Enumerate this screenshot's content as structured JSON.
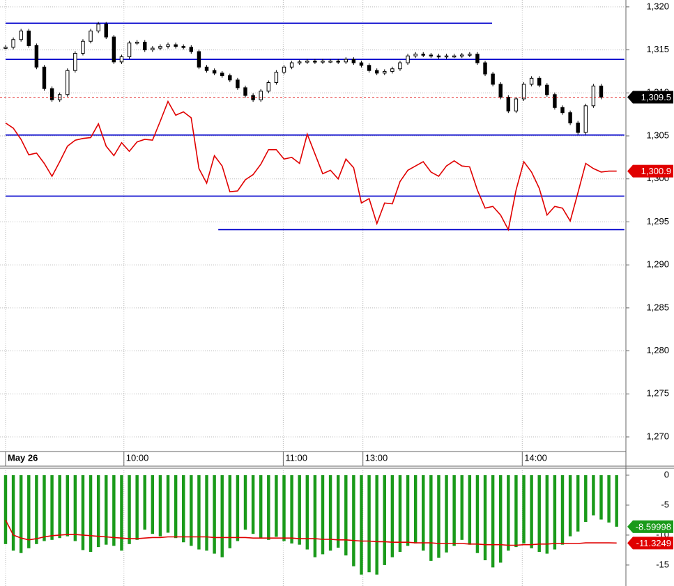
{
  "chart_data": [
    {
      "type": "candlestick",
      "xlim": [
        -0.72,
        80.2
      ],
      "xticks": [
        {
          "value": 0,
          "label": "May 26"
        },
        {
          "value": 15.3,
          "label": "10:00"
        },
        {
          "value": 35.9,
          "label": "11:00"
        },
        {
          "value": 46.2,
          "label": "13:00"
        },
        {
          "value": 66.8,
          "label": "14:00"
        }
      ],
      "ylim": [
        1268.3,
        1320.8
      ],
      "yticks": [
        {
          "value": 1270,
          "label": "1,270"
        },
        {
          "value": 1275,
          "label": "1,275"
        },
        {
          "value": 1280,
          "label": "1,280"
        },
        {
          "value": 1285,
          "label": "1,285"
        },
        {
          "value": 1290,
          "label": "1,290"
        },
        {
          "value": 1295,
          "label": "1,295"
        },
        {
          "value": 1300,
          "label": "1,300"
        },
        {
          "value": 1305,
          "label": "1,305"
        },
        {
          "value": 1310,
          "label": "1,310"
        },
        {
          "value": 1315,
          "label": "1,315"
        },
        {
          "value": 1320,
          "label": "1,320"
        }
      ],
      "grid": true,
      "levels": [
        {
          "value": 1318.1,
          "from": 0,
          "to": 62.9
        },
        {
          "value": 1313.9,
          "from": 0,
          "to": 80
        },
        {
          "value": 1305.1,
          "from": 0,
          "to": 80
        },
        {
          "value": 1298.0,
          "from": 0,
          "to": 80
        },
        {
          "value": 1294.1,
          "from": 27.5,
          "to": 80
        }
      ],
      "level_color": "#0000cc",
      "series": [
        {
          "type": "candlestick",
          "color": "#000000",
          "last_label": "1,309.5",
          "values": [
            1315.3,
            1316.2,
            1317.2,
            1315.5,
            1313,
            1310.5,
            1309.2,
            1309.8,
            1312.6,
            1314.6,
            1316,
            1317.2,
            1318,
            1316.5,
            1313.6,
            1314.2,
            1315.8,
            1315.9,
            1315,
            1315.2,
            1315.4,
            1315.6,
            1315.4,
            1315.3,
            1314.8,
            1313,
            1312.6,
            1312.3,
            1312,
            1311.5,
            1310.6,
            1309.7,
            1309.2,
            1310.2,
            1311.2,
            1312.4,
            1313,
            1313.5,
            1313.6,
            1313.7,
            1313.6,
            1313.7,
            1313.7,
            1313.6,
            1313.9,
            1313.5,
            1313.2,
            1312.6,
            1312.3,
            1312.5,
            1312.8,
            1313.5,
            1314.3,
            1314.5,
            1314.4,
            1314.3,
            1314.2,
            1314.3,
            1314.3,
            1314.4,
            1314.5,
            1313.5,
            1312.2,
            1311,
            1309.5,
            1307.9,
            1309.3,
            1311,
            1311.7,
            1310.9,
            1309.8,
            1308.3,
            1307.7,
            1306.5,
            1305.4,
            1308.5,
            1310.8,
            1309.5,
            null,
            null
          ]
        },
        {
          "type": "line",
          "color": "#e00000",
          "last_label": "1,300.9",
          "values": [
            1306.5,
            1305.9,
            1304.6,
            1302.8,
            1303,
            1301.8,
            1300.3,
            1302,
            1303.8,
            1304.5,
            1304.7,
            1304.8,
            1306.4,
            1303.8,
            1302.7,
            1304.2,
            1303.2,
            1304.3,
            1304.6,
            1304.5,
            1306.7,
            1309,
            1307.4,
            1307.8,
            1307.1,
            1301.2,
            1299.5,
            1302.7,
            1301.5,
            1298.5,
            1298.6,
            1299.9,
            1300.5,
            1301.7,
            1303.4,
            1303.4,
            1302.3,
            1302.5,
            1301.8,
            1305.2,
            1302.9,
            1300.6,
            1301,
            1300,
            1302.3,
            1301.3,
            1297.2,
            1297.7,
            1294.8,
            1297.2,
            1297.1,
            1299.7,
            1301,
            1301.5,
            1302,
            1300.8,
            1300.3,
            1301.5,
            1302.1,
            1301.5,
            1301.4,
            1298.7,
            1296.6,
            1296.8,
            1295.8,
            1294.1,
            1298.7,
            1302,
            1300.8,
            1298.9,
            1295.8,
            1296.8,
            1296.6,
            1295.1,
            1298.4,
            1301.8,
            1301.2,
            1300.8,
            1300.9,
            1300.9
          ]
        }
      ]
    },
    {
      "type": "bar",
      "xlim": [
        -0.72,
        80.2
      ],
      "ylim": [
        -18.5,
        1.16
      ],
      "yticks": [
        -15,
        -10,
        -5,
        0
      ],
      "series": [
        {
          "type": "bar",
          "color": "#1a9a1a",
          "last_label": "-8.59998",
          "values": [
            -11.5,
            -12.6,
            -13,
            -12.2,
            -11.5,
            -11,
            -10.8,
            -10.5,
            -10.2,
            -11,
            -12.5,
            -12.8,
            -12,
            -11.6,
            -11.8,
            -12.6,
            -11.5,
            -10.8,
            -9.1,
            -9.8,
            -10.2,
            -9.6,
            -10.5,
            -11.2,
            -11.8,
            -12.4,
            -12.6,
            -13.1,
            -13.7,
            -12.2,
            -11,
            -9.1,
            -9.8,
            -10.6,
            -10.8,
            -10.3,
            -11,
            -11.4,
            -11.6,
            -12.4,
            -13.7,
            -13.2,
            -12.6,
            -12.1,
            -13.4,
            -15.2,
            -16.6,
            -16.2,
            -16.6,
            -15,
            -13.7,
            -12.8,
            -11.8,
            -11.4,
            -12.6,
            -14.3,
            -13.8,
            -12.9,
            -11.8,
            -10.8,
            -11.6,
            -13,
            -14.2,
            -15.4,
            -14.6,
            -12.6,
            -12,
            -11.4,
            -12.2,
            -12.8,
            -13.1,
            -12.4,
            -11.6,
            -10.2,
            -9.4,
            -7.8,
            -6.7,
            -7.4,
            -7.9,
            -8.59998
          ]
        },
        {
          "type": "line",
          "color": "#e00000",
          "last_label": "-11.3249",
          "values": [
            -7.5,
            -10,
            -10.5,
            -10.8,
            -10.6,
            -10.3,
            -10.1,
            -10,
            -9.9,
            -9.9,
            -10,
            -10.1,
            -10.2,
            -10.3,
            -10.4,
            -10.5,
            -10.6,
            -10.6,
            -10.5,
            -10.4,
            -10.4,
            -10.3,
            -10.3,
            -10.3,
            -10.3,
            -10.3,
            -10.3,
            -10.4,
            -10.4,
            -10.4,
            -10.4,
            -10.4,
            -10.5,
            -10.5,
            -10.5,
            -10.5,
            -10.5,
            -10.5,
            -10.6,
            -10.6,
            -10.6,
            -10.7,
            -10.7,
            -10.8,
            -10.8,
            -10.9,
            -11,
            -11,
            -11.1,
            -11.1,
            -11.2,
            -11.2,
            -11.2,
            -11.3,
            -11.3,
            -11.3,
            -11.4,
            -11.4,
            -11.4,
            -11.4,
            -11.5,
            -11.5,
            -11.6,
            -11.6,
            -11.6,
            -11.7,
            -11.7,
            -11.6,
            -11.6,
            -11.5,
            -11.5,
            -11.4,
            -11.4,
            -11.4,
            -11.4,
            -11.3,
            -11.3,
            -11.3,
            -11.3,
            -11.3249
          ]
        }
      ]
    }
  ]
}
